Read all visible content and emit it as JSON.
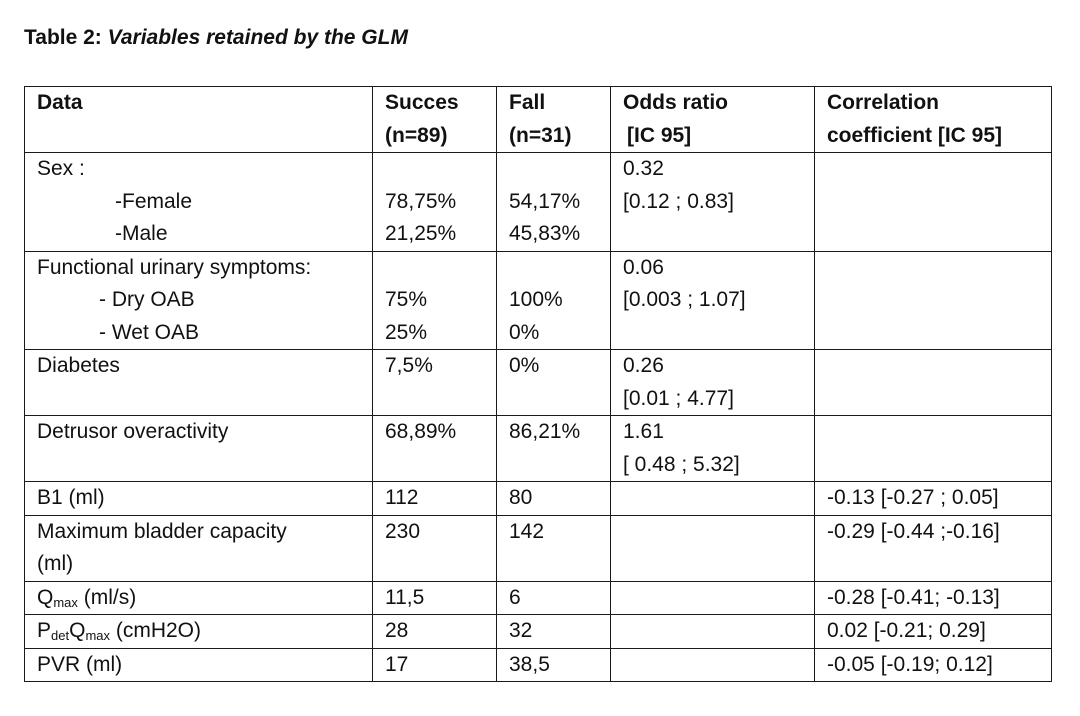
{
  "caption": {
    "prefix": "Table 2:",
    "title": "Variables retained by the GLM"
  },
  "headers": {
    "data": "Data",
    "success": [
      "Succes",
      "(n=89)"
    ],
    "fall": [
      "Fall",
      "(n=31)"
    ],
    "odds": [
      "Odds ratio",
      "[IC 95]"
    ],
    "corr": [
      "Correlation",
      "coefficient [IC 95]"
    ]
  },
  "rows": {
    "sex": {
      "label": "Sex :",
      "female_label": "-Female",
      "male_label": "-Male",
      "success_female": "78,75%",
      "success_male": "21,25%",
      "fall_female": "54,17%",
      "fall_male": "45,83%",
      "odds": [
        "0.32",
        "[0.12 ; 0.83]"
      ]
    },
    "urinary": {
      "label": "Functional urinary symptoms:",
      "dry_label": "- Dry OAB",
      "wet_label": "- Wet OAB",
      "success_dry": "75%",
      "success_wet": "25%",
      "fall_dry": "100%",
      "fall_wet": "0%",
      "odds": [
        "0.06",
        "[0.003 ; 1.07]"
      ]
    },
    "diabetes": {
      "label": "Diabetes",
      "success": "7,5%",
      "fall": "0%",
      "odds": [
        "0.26",
        "[0.01 ; 4.77]"
      ]
    },
    "detrusor": {
      "label": "Detrusor overactivity",
      "success": "68,89%",
      "fall": "86,21%",
      "odds": [
        "1.61",
        "[ 0.48 ; 5.32]"
      ]
    },
    "b1": {
      "label": "B1 (ml)",
      "success": "112",
      "fall": "80",
      "corr": "-0.13 [-0.27 ; 0.05]"
    },
    "capacity": {
      "label": [
        "Maximum bladder capacity",
        "(ml)"
      ],
      "success": "230",
      "fall": "142",
      "corr": "-0.29 [-0.44 ;-0.16]"
    },
    "qmax": {
      "label_q": "Q",
      "label_sub": "max",
      "label_unit": " (ml/s)",
      "success": "11,5",
      "fall": "6",
      "corr": "-0.28 [-0.41; -0.13]"
    },
    "pdet": {
      "label_p": "P",
      "label_sub1": "det",
      "label_q": "Q",
      "label_sub2": "max",
      "label_unit": " (cmH2O)",
      "success": "28",
      "fall": "32",
      "corr": "0.02 [-0.21; 0.29]"
    },
    "pvr": {
      "label": "PVR (ml)",
      "success": "17",
      "fall": "38,5",
      "corr": "-0.05 [-0.19; 0.12]"
    }
  }
}
